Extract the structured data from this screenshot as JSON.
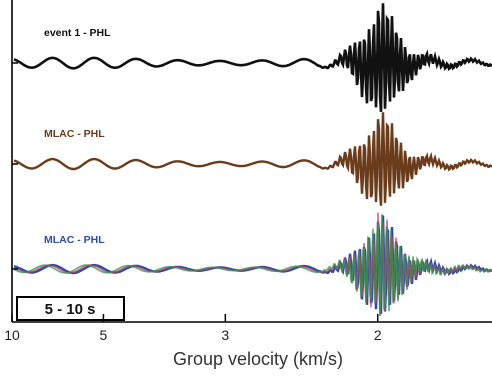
{
  "chart_data": {
    "type": "line",
    "title": "",
    "xlabel": "Group velocity (km/s)",
    "ylabel": "",
    "x_scale": "reciprocal",
    "xlim": [
      10,
      1.6
    ],
    "x_ticks": [
      "10",
      "5",
      "3",
      "2"
    ],
    "x_tick_values": [
      10,
      5,
      3,
      2
    ],
    "period_band": "5 - 10 s",
    "grid": false,
    "traces": [
      {
        "label": "event 1 - PHL",
        "label_color": "#111111",
        "colors": [
          "#111111"
        ],
        "packet_peak_velocity": 2.0,
        "relative_amplitude": 1.0,
        "background_amplitude": 0.12
      },
      {
        "label": "MLAC - PHL",
        "label_color": "#6b3c1b",
        "colors": [
          "#6b3c1b"
        ],
        "packet_peak_velocity": 2.0,
        "relative_amplitude": 0.9,
        "background_amplitude": 0.12
      },
      {
        "label": "MLAC - PHL",
        "label_color": "#2f4ca5",
        "colors": [
          "#2f4ca5",
          "#cc3a6a",
          "#2e9a4a"
        ],
        "packet_peak_velocity": 2.0,
        "relative_amplitude": 1.0,
        "background_amplitude": 0.1
      }
    ]
  }
}
